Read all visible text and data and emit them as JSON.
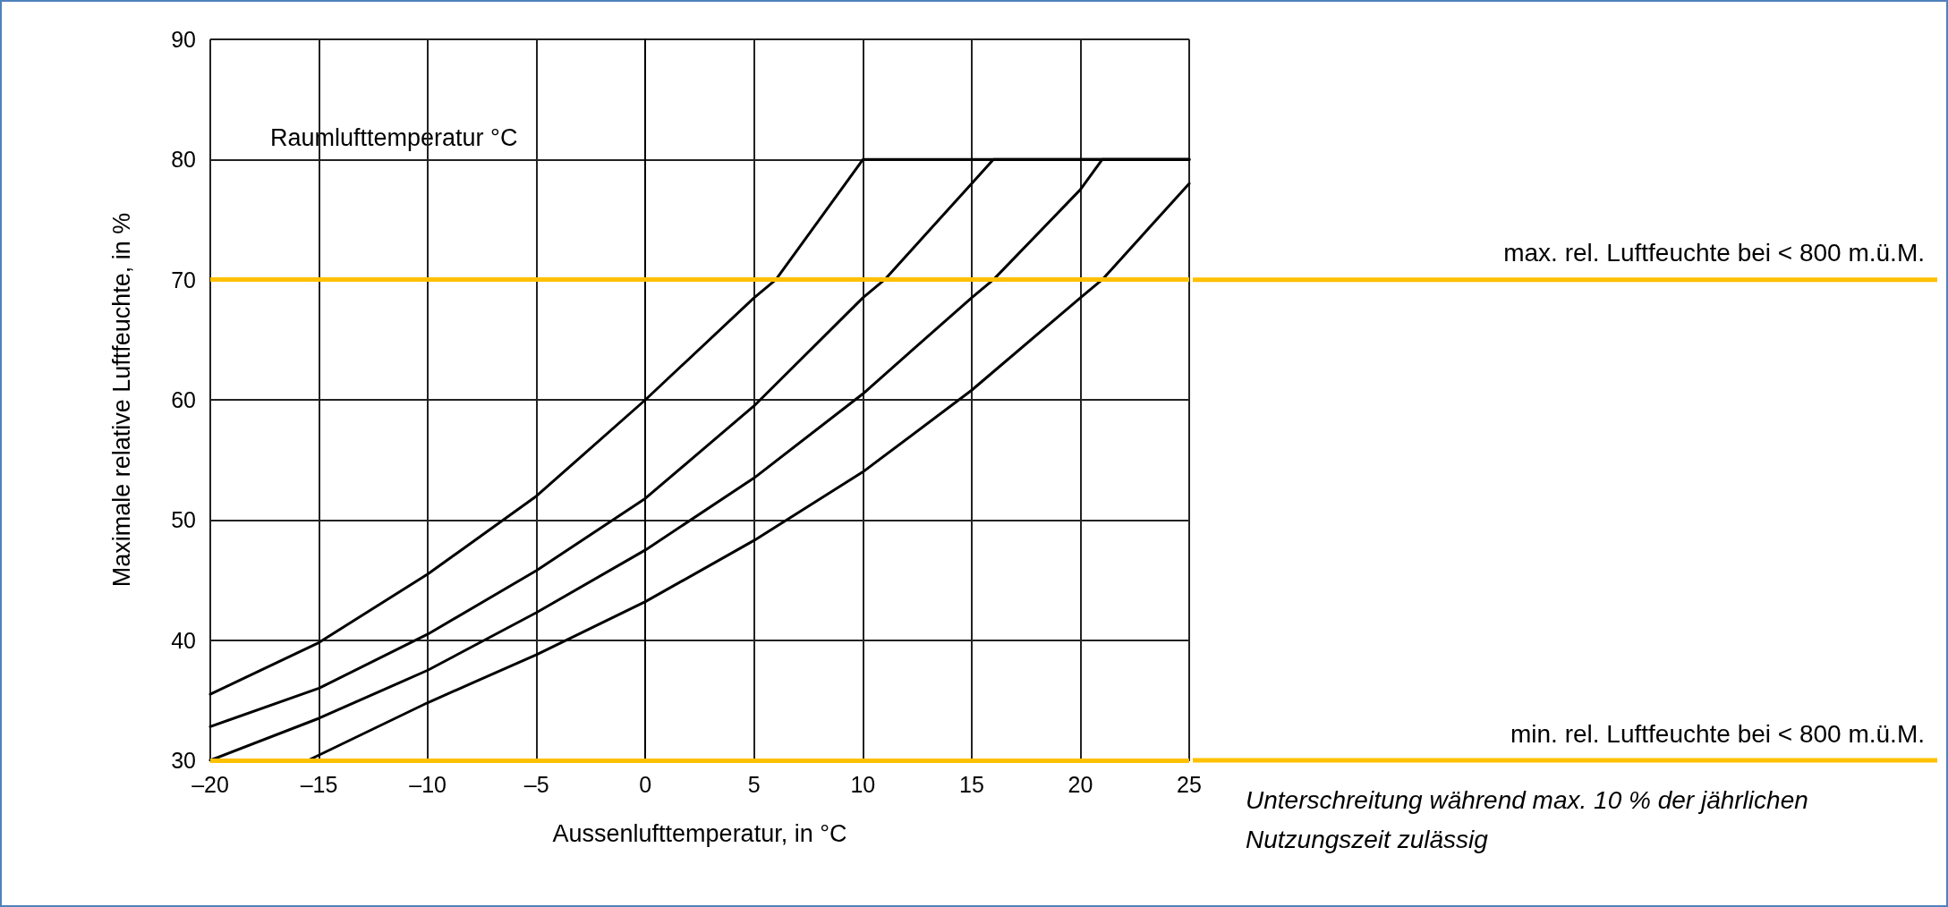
{
  "chart_data": {
    "type": "line",
    "xlabel": "Aussenlufttemperatur, in °C",
    "ylabel": "Maximale relative Luftfeuchte, in %",
    "legend_title": "Raumlufttemperatur °C",
    "xlim": [
      -20,
      25
    ],
    "xticks": [
      {
        "value": -20,
        "label": "–20"
      },
      {
        "value": -15,
        "label": "–15"
      },
      {
        "value": -10,
        "label": "–10"
      },
      {
        "value": -5,
        "label": "–5"
      },
      0,
      5,
      10,
      15,
      20,
      25
    ],
    "ylim": [
      30,
      90
    ],
    "yticks": [
      30,
      40,
      50,
      60,
      70,
      80,
      90
    ],
    "grid": true,
    "legend": false,
    "marker": "none",
    "line_style": "solid",
    "series": [
      {
        "name": "10",
        "color": "#000000",
        "x": [
          -20,
          -15,
          -10,
          -5,
          0,
          5,
          6,
          10,
          25
        ],
        "values": [
          35.5,
          39.8,
          45.5,
          52,
          60,
          68.5,
          70,
          80,
          80
        ]
      },
      {
        "name": "15",
        "color": "#000000",
        "x": [
          -20,
          -15,
          -10,
          -5,
          0,
          5,
          10,
          11,
          15,
          16,
          25
        ],
        "values": [
          32.8,
          36,
          40.5,
          45.8,
          51.8,
          59.5,
          68.5,
          70,
          78,
          80,
          80
        ]
      },
      {
        "name": "20",
        "color": "#000000",
        "x": [
          -20,
          -15,
          -10,
          -5,
          0,
          5,
          10,
          15,
          16,
          20,
          21,
          25
        ],
        "values": [
          30,
          33.5,
          37.5,
          42.3,
          47.5,
          53.5,
          60.5,
          68.5,
          70,
          77.5,
          80,
          80
        ]
      },
      {
        "name": "25",
        "color": "#000000",
        "x": [
          -15.5,
          -10,
          -5,
          0,
          5,
          10,
          15,
          20,
          21,
          25
        ],
        "values": [
          30,
          34.8,
          38.8,
          43.2,
          48.3,
          54,
          60.8,
          68.5,
          70,
          78
        ]
      }
    ],
    "ref_lines": [
      {
        "axis": "y",
        "value": 70,
        "label": "max. rel. Luftfeuchte bei < 800 m.ü.M.",
        "color": "#ffc000",
        "line_style": "solid"
      },
      {
        "axis": "y",
        "value": 30,
        "label": "min. rel. Luftfeuchte bei < 800 m.ü.M.",
        "color": "#ffc000",
        "line_style": "solid"
      }
    ],
    "annotations": [
      "Unterschreitung während max. 10 % der jährlichen Nutzungszeit zulässig"
    ]
  }
}
